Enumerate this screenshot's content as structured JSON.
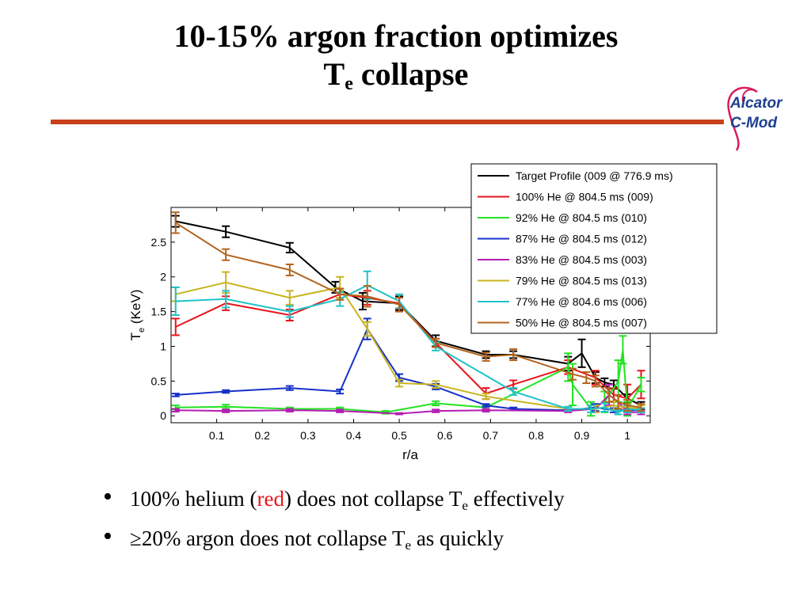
{
  "slide": {
    "title_line1": "10-15% argon fraction optimizes",
    "title_line2_main": "T",
    "title_line2_sub": "e",
    "title_line2_rest": " collapse",
    "logo_line1": "Alcator",
    "logo_line2": "C-Mod",
    "bullets": [
      {
        "pre": "100% helium (",
        "red": "red",
        "mid": ") does not collapse T",
        "sub": "e",
        "post": " effectively"
      },
      {
        "pre": "≥20% argon does not collapse T",
        "sub": "e",
        "post": " as quickly"
      }
    ],
    "colors": {
      "rule": "#c8411a",
      "logo": "#1e3f8f",
      "logo_swoosh": "#d81c5a",
      "highlight": "#e8141c"
    }
  },
  "chart_data": {
    "type": "line",
    "xlabel": "r/a",
    "ylabel_main": "T",
    "ylabel_sub": "e",
    "ylabel_rest": " (KeV)",
    "xlim": [
      0,
      1.05
    ],
    "ylim": [
      -0.1,
      3.0
    ],
    "xticks": [
      0.1,
      0.2,
      0.3,
      0.4,
      0.5,
      0.6,
      0.7,
      0.8,
      0.9,
      1
    ],
    "xtick_labels": [
      "0.1",
      "0.2",
      "0.3",
      "0.4",
      "0.5",
      "0.6",
      "0.7",
      "0.8",
      "0.9",
      "1"
    ],
    "yticks": [
      0,
      0.5,
      1,
      1.5,
      2,
      2.5
    ],
    "ytick_labels": [
      "0",
      "0.5",
      "1",
      "1.5",
      "2",
      "2.5"
    ],
    "grid": false,
    "legend_position": "top-right",
    "series": [
      {
        "name": "Target Profile (009 @ 776.9 ms)",
        "color": "#000000",
        "x": [
          0.01,
          0.12,
          0.26,
          0.36,
          0.42,
          0.5,
          0.58,
          0.69,
          0.75,
          0.87,
          0.9,
          0.93,
          0.95,
          0.97,
          1.0,
          1.03
        ],
        "y": [
          2.8,
          2.65,
          2.42,
          1.85,
          1.65,
          1.62,
          1.08,
          0.88,
          0.88,
          0.75,
          0.9,
          0.55,
          0.48,
          0.45,
          0.25,
          0.15
        ],
        "err": [
          0.08,
          0.08,
          0.07,
          0.08,
          0.12,
          0.1,
          0.08,
          0.05,
          0.05,
          0.1,
          0.2,
          0.08,
          0.06,
          0.06,
          0.06,
          0.05
        ]
      },
      {
        "name": "100% He @ 804.5 ms (009)",
        "color": "#e8141c",
        "x": [
          0.01,
          0.12,
          0.26,
          0.37,
          0.43,
          0.5,
          0.58,
          0.69,
          0.75,
          0.87,
          0.93,
          0.97,
          1.0,
          1.03
        ],
        "y": [
          1.28,
          1.62,
          1.45,
          1.75,
          1.7,
          1.62,
          1.05,
          0.32,
          0.45,
          0.7,
          0.55,
          0.3,
          0.25,
          0.45
        ],
        "err": [
          0.12,
          0.1,
          0.08,
          0.08,
          0.1,
          0.08,
          0.06,
          0.08,
          0.06,
          0.1,
          0.1,
          0.1,
          0.2,
          0.2
        ]
      },
      {
        "name": "92% He @ 804.5 ms (010)",
        "color": "#22e322",
        "x": [
          0.01,
          0.12,
          0.26,
          0.37,
          0.47,
          0.58,
          0.69,
          0.87,
          0.88,
          0.92,
          0.95,
          0.98,
          0.99,
          1.0,
          1.03
        ],
        "y": [
          0.12,
          0.13,
          0.1,
          0.1,
          0.05,
          0.18,
          0.12,
          0.7,
          0.45,
          0.1,
          0.2,
          0.5,
          0.95,
          0.1,
          0.45
        ],
        "err": [
          0.03,
          0.03,
          0.02,
          0.02,
          0.02,
          0.03,
          0.03,
          0.2,
          0.3,
          0.1,
          0.15,
          0.3,
          0.2,
          0.1,
          0.1
        ]
      },
      {
        "name": "87% He @ 804.5 ms (012)",
        "color": "#1530c8",
        "x": [
          0.01,
          0.12,
          0.26,
          0.37,
          0.43,
          0.5,
          0.58,
          0.69,
          0.75,
          0.87,
          0.93,
          0.97,
          1.0,
          1.03
        ],
        "y": [
          0.3,
          0.35,
          0.4,
          0.35,
          1.25,
          0.55,
          0.42,
          0.15,
          0.1,
          0.08,
          0.12,
          0.08,
          0.08,
          0.08
        ],
        "err": [
          0.02,
          0.02,
          0.03,
          0.03,
          0.15,
          0.05,
          0.04,
          0.02,
          0.02,
          0.02,
          0.05,
          0.03,
          0.03,
          0.03
        ]
      },
      {
        "name": "83% He @ 804.5 ms (003)",
        "color": "#b41eb4",
        "x": [
          0.01,
          0.12,
          0.26,
          0.37,
          0.5,
          0.58,
          0.69,
          0.87,
          0.93,
          0.96,
          0.98,
          1.0,
          1.03
        ],
        "y": [
          0.08,
          0.07,
          0.08,
          0.07,
          0.03,
          0.07,
          0.08,
          0.07,
          0.1,
          0.3,
          0.2,
          0.05,
          0.05
        ],
        "err": [
          0.02,
          0.02,
          0.02,
          0.02,
          0.01,
          0.02,
          0.02,
          0.02,
          0.05,
          0.15,
          0.1,
          0.03,
          0.03
        ]
      },
      {
        "name": "79% He @ 804.5 ms (013)",
        "color": "#c8b41e",
        "x": [
          0.01,
          0.12,
          0.26,
          0.37,
          0.43,
          0.5,
          0.58,
          0.69,
          0.87,
          0.93,
          0.97,
          1.0,
          1.03
        ],
        "y": [
          1.75,
          1.92,
          1.7,
          1.85,
          1.25,
          0.47,
          0.45,
          0.28,
          0.1,
          0.1,
          0.15,
          0.12,
          0.1
        ],
        "err": [
          0.1,
          0.15,
          0.1,
          0.15,
          0.1,
          0.05,
          0.05,
          0.04,
          0.03,
          0.05,
          0.06,
          0.05,
          0.05
        ]
      },
      {
        "name": "77% He @ 804.6 ms (006)",
        "color": "#1ec2c8",
        "x": [
          0.01,
          0.12,
          0.26,
          0.37,
          0.43,
          0.5,
          0.58,
          0.75,
          0.87,
          0.92,
          0.95,
          0.98,
          1.0,
          1.03
        ],
        "y": [
          1.65,
          1.68,
          1.5,
          1.68,
          1.88,
          1.65,
          1.0,
          0.35,
          0.1,
          0.1,
          0.12,
          0.05,
          0.1,
          0.08
        ],
        "err": [
          0.2,
          0.12,
          0.08,
          0.1,
          0.2,
          0.1,
          0.06,
          0.05,
          0.03,
          0.05,
          0.06,
          0.03,
          0.05,
          0.03
        ]
      },
      {
        "name": "50% He @ 804.5 ms (007)",
        "color": "#b4641e",
        "x": [
          0.01,
          0.12,
          0.26,
          0.37,
          0.43,
          0.5,
          0.58,
          0.69,
          0.75,
          0.88,
          0.91,
          0.93,
          0.96,
          0.98,
          1.0,
          1.03
        ],
        "y": [
          2.78,
          2.32,
          2.1,
          1.75,
          1.72,
          1.6,
          1.05,
          0.85,
          0.88,
          0.6,
          0.55,
          0.5,
          0.3,
          0.2,
          0.15,
          0.12
        ],
        "err": [
          0.15,
          0.08,
          0.08,
          0.08,
          0.15,
          0.1,
          0.06,
          0.06,
          0.08,
          0.08,
          0.08,
          0.08,
          0.1,
          0.1,
          0.08,
          0.05
        ]
      }
    ]
  }
}
